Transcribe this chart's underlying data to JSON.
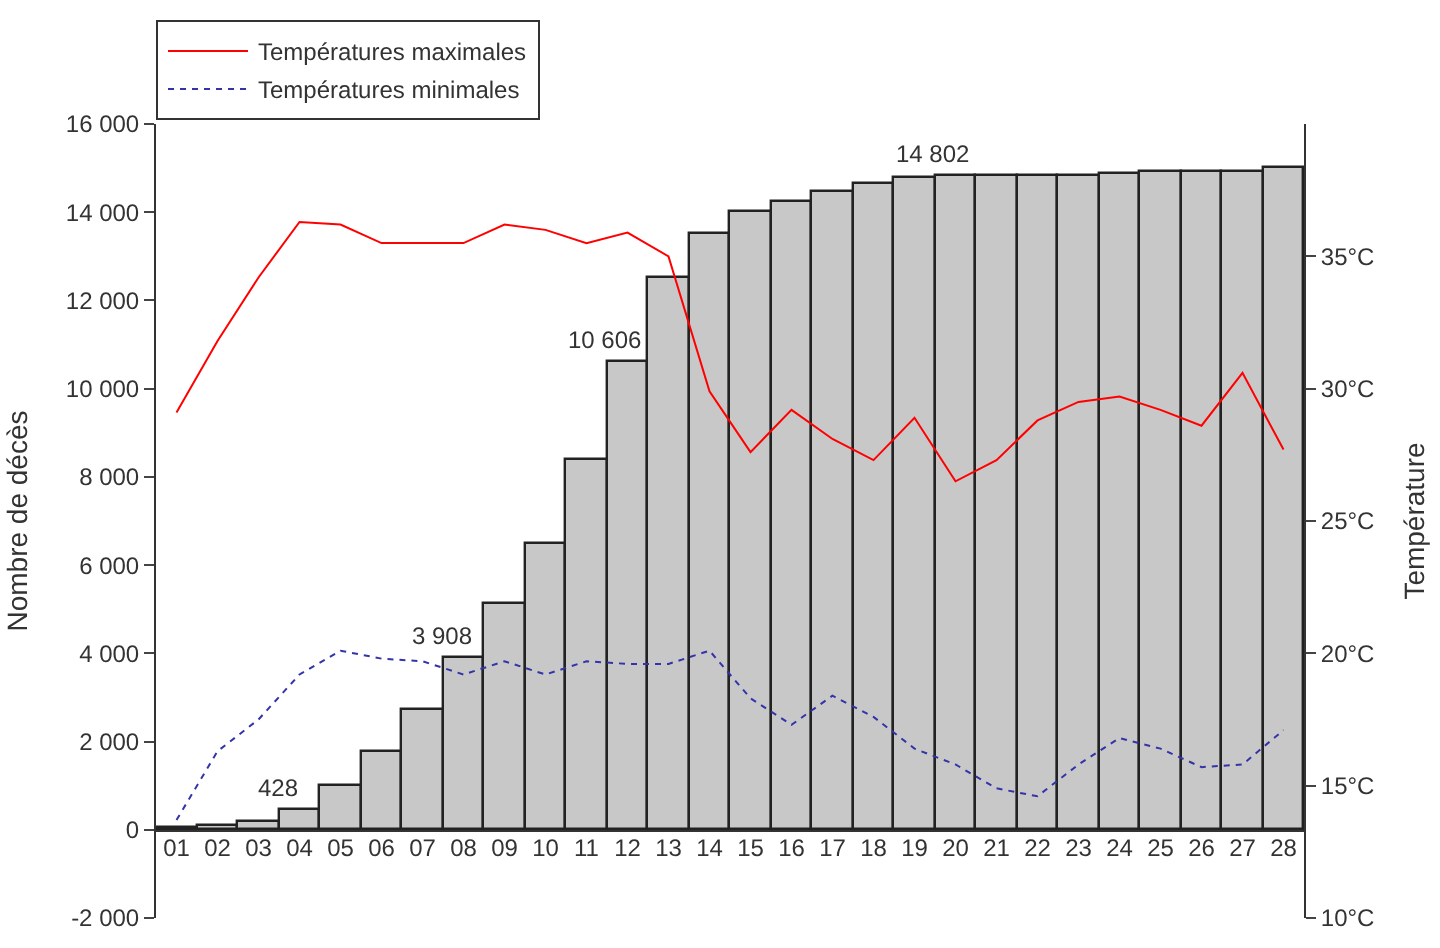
{
  "chart_data": {
    "type": "bar",
    "ylabel": "Nombre de décès",
    "y2label": "Température",
    "categories": [
      "01",
      "02",
      "03",
      "04",
      "05",
      "06",
      "07",
      "08",
      "09",
      "10",
      "11",
      "12",
      "13",
      "14",
      "15",
      "16",
      "17",
      "18",
      "19",
      "20",
      "21",
      "22",
      "23",
      "24",
      "25",
      "26",
      "27",
      "28"
    ],
    "series": [
      {
        "color": "#c8c8c8",
        "values": [
          20,
          70,
          180,
          428,
          1000,
          1750,
          2700,
          3908,
          5100,
          6500,
          8400,
          10606,
          12500,
          13500,
          14000,
          14220,
          14470,
          14650,
          14760,
          14802,
          14810,
          14820,
          14820,
          14880,
          14910,
          14890,
          14920,
          15000
        ],
        "value_labels": [
          null,
          null,
          null,
          "428",
          null,
          null,
          null,
          "3 908",
          null,
          null,
          null,
          "10 606",
          null,
          null,
          null,
          null,
          null,
          null,
          null,
          "14 802",
          null,
          null,
          null,
          null,
          null,
          null,
          null,
          null
        ]
      },
      {
        "type": "line",
        "name": "Températures maximales",
        "axis": "y2",
        "color": "#ff0000",
        "line_style": "solid",
        "values": [
          29.1,
          31.8,
          34.2,
          36.3,
          36.2,
          35.5,
          35.5,
          35.5,
          36.2,
          36.0,
          35.5,
          35.9,
          35.0,
          29.9,
          27.6,
          29.2,
          28.1,
          27.3,
          28.9,
          26.5,
          27.3,
          28.8,
          29.5,
          29.7,
          29.2,
          28.6,
          30.6,
          27.7
        ]
      },
      {
        "type": "line",
        "name": "Températures minimales",
        "axis": "y2",
        "color": "#3333aa",
        "line_style": "dotted",
        "values": [
          13.7,
          16.3,
          17.5,
          19.2,
          20.1,
          19.8,
          19.7,
          19.2,
          19.7,
          19.2,
          19.7,
          19.6,
          19.6,
          20.1,
          18.3,
          17.3,
          18.4,
          17.6,
          16.4,
          15.8,
          14.9,
          14.6,
          15.8,
          16.8,
          16.4,
          15.7,
          15.8,
          17.1
        ]
      }
    ],
    "ylim": [
      -2000,
      16000
    ],
    "yticks": [
      {
        "value": -2000,
        "label": "-2 000"
      },
      0,
      {
        "value": 2000,
        "label": "2 000"
      },
      {
        "value": 4000,
        "label": "4 000"
      },
      {
        "value": 6000,
        "label": "6 000"
      },
      {
        "value": 8000,
        "label": "8 000"
      },
      {
        "value": 10000,
        "label": "10 000"
      },
      {
        "value": 12000,
        "label": "12 000"
      },
      {
        "value": 14000,
        "label": "14 000"
      },
      {
        "value": 16000,
        "label": "16 000"
      }
    ],
    "y2lim": [
      10,
      40
    ],
    "y2ticks": [
      {
        "value": 10,
        "label": "10°C"
      },
      {
        "value": 15,
        "label": "15°C"
      },
      {
        "value": 20,
        "label": "20°C"
      },
      {
        "value": 25,
        "label": "25°C"
      },
      {
        "value": 30,
        "label": "30°C"
      },
      {
        "value": 35,
        "label": "35°C"
      }
    ],
    "legend": "top left"
  }
}
